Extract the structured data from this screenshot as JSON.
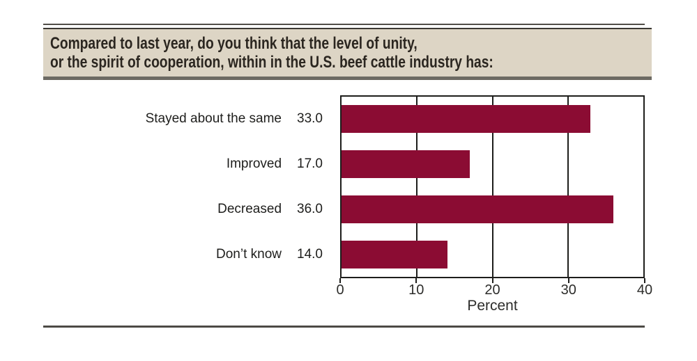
{
  "title": {
    "line1": "Compared to last year, do you think that the level of unity,",
    "line2": "or the spirit of cooperation, within in the U.S. beef cattle industry has:"
  },
  "chart_data": {
    "type": "bar",
    "orientation": "horizontal",
    "categories": [
      "Stayed about the same",
      "Improved",
      "Decreased",
      "Don’t know"
    ],
    "values": [
      33.0,
      17.0,
      36.0,
      14.0
    ],
    "value_labels": [
      "33.0",
      "17.0",
      "36.0",
      "14.0"
    ],
    "title": "",
    "xlabel": "Percent",
    "ylabel": "",
    "xlim": [
      0,
      40
    ],
    "xticks": [
      0,
      10,
      20,
      30,
      40
    ],
    "gridlines": [
      10,
      20,
      30
    ],
    "grid": "vertical",
    "legend_position": "none",
    "bar_color": "#8b0c33"
  },
  "colors": {
    "bar": "#8b0c33",
    "title_box_background": "#ddd5c5",
    "title_text": "#2b2620",
    "plot_border": "#1d1d1b",
    "rule": "#4c4a45"
  }
}
